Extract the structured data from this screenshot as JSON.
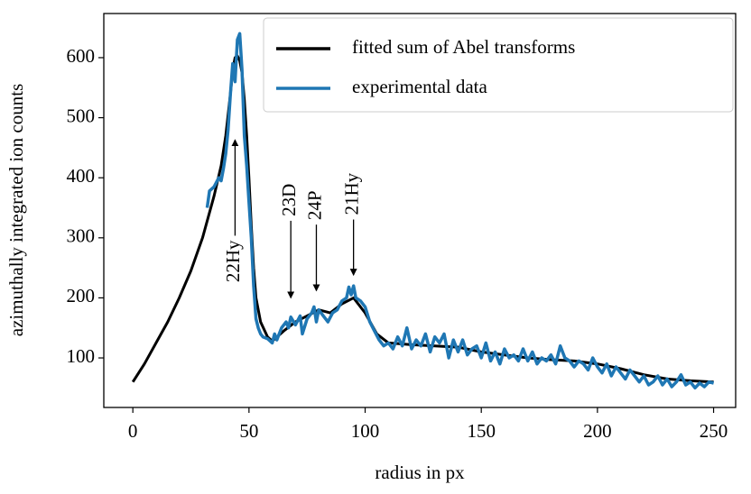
{
  "chart_data": {
    "type": "line",
    "xlabel": "radius in px",
    "ylabel": "azimuthally integrated ion counts",
    "xlim": [
      -12.5,
      259.5
    ],
    "ylim": [
      17.5,
      673.5
    ],
    "xticks": [
      0,
      50,
      100,
      150,
      200,
      250
    ],
    "yticks": [
      100,
      200,
      300,
      400,
      500,
      600
    ],
    "legend": "upper right",
    "series": [
      {
        "name": "fitted sum of Abel transforms",
        "color": "#000000",
        "x": [
          0,
          5,
          10,
          15,
          20,
          25,
          30,
          35,
          38,
          40,
          42,
          43,
          44,
          45,
          46,
          47,
          48,
          49,
          50,
          51,
          52,
          53,
          55,
          58,
          60,
          65,
          70,
          75,
          80,
          85,
          90,
          95,
          100,
          105,
          110,
          120,
          130,
          140,
          150,
          160,
          170,
          180,
          190,
          200,
          210,
          220,
          230,
          240,
          250
        ],
        "values": [
          60,
          90,
          125,
          160,
          200,
          245,
          300,
          370,
          420,
          470,
          540,
          580,
          600,
          603,
          595,
          575,
          530,
          470,
          400,
          320,
          250,
          200,
          160,
          135,
          128,
          145,
          160,
          170,
          180,
          175,
          190,
          200,
          175,
          140,
          125,
          122,
          120,
          118,
          110,
          105,
          100,
          97,
          95,
          90,
          82,
          72,
          65,
          62,
          60
        ]
      },
      {
        "name": "experimental data",
        "color": "#1f77b4",
        "x": [
          32,
          33,
          35,
          37,
          38,
          39,
          40,
          41,
          42,
          43,
          44,
          45,
          46,
          47,
          48,
          49,
          50,
          51,
          52,
          53,
          54,
          55,
          56,
          58,
          60,
          61,
          62,
          64,
          66,
          67,
          68,
          70,
          72,
          73,
          75,
          77,
          78,
          79,
          80,
          82,
          84,
          86,
          88,
          90,
          92,
          93,
          94,
          95,
          96,
          98,
          100,
          102,
          104,
          106,
          108,
          110,
          112,
          114,
          116,
          118,
          120,
          122,
          124,
          126,
          128,
          130,
          132,
          134,
          136,
          138,
          140,
          142,
          144,
          146,
          148,
          150,
          152,
          154,
          156,
          158,
          160,
          162,
          164,
          166,
          168,
          170,
          172,
          174,
          176,
          178,
          180,
          182,
          184,
          186,
          188,
          190,
          192,
          194,
          196,
          198,
          200,
          202,
          204,
          206,
          208,
          210,
          212,
          214,
          216,
          218,
          220,
          222,
          224,
          226,
          228,
          230,
          232,
          234,
          236,
          238,
          240,
          242,
          244,
          246,
          248,
          250
        ],
        "values": [
          350,
          378,
          385,
          400,
          395,
          415,
          440,
          480,
          540,
          590,
          560,
          630,
          640,
          580,
          470,
          420,
          360,
          300,
          220,
          165,
          150,
          140,
          135,
          132,
          125,
          140,
          130,
          150,
          160,
          150,
          168,
          155,
          170,
          140,
          165,
          175,
          185,
          160,
          180,
          170,
          160,
          175,
          180,
          195,
          200,
          218,
          205,
          220,
          200,
          195,
          185,
          160,
          145,
          130,
          120,
          125,
          115,
          135,
          120,
          150,
          115,
          130,
          120,
          140,
          110,
          135,
          125,
          140,
          100,
          130,
          110,
          130,
          105,
          115,
          120,
          100,
          125,
          95,
          110,
          90,
          115,
          100,
          105,
          95,
          115,
          95,
          110,
          90,
          100,
          95,
          105,
          90,
          120,
          100,
          95,
          85,
          95,
          90,
          80,
          100,
          85,
          75,
          90,
          70,
          85,
          75,
          65,
          80,
          70,
          60,
          70,
          55,
          60,
          70,
          55,
          65,
          52,
          60,
          72,
          55,
          60,
          50,
          58,
          52,
          60,
          58
        ]
      }
    ],
    "annotations": [
      {
        "text": "22Hy",
        "xy": [
          44,
          463
        ],
        "xytext": [
          44,
          261
        ]
      },
      {
        "text": "23D",
        "xy": [
          68,
          200
        ],
        "xytext": [
          68,
          363
        ]
      },
      {
        "text": "24P",
        "xy": [
          79,
          212
        ],
        "xytext": [
          79,
          354
        ]
      },
      {
        "text": "21Hy",
        "xy": [
          95,
          238
        ],
        "xytext": [
          95,
          373
        ]
      }
    ]
  }
}
